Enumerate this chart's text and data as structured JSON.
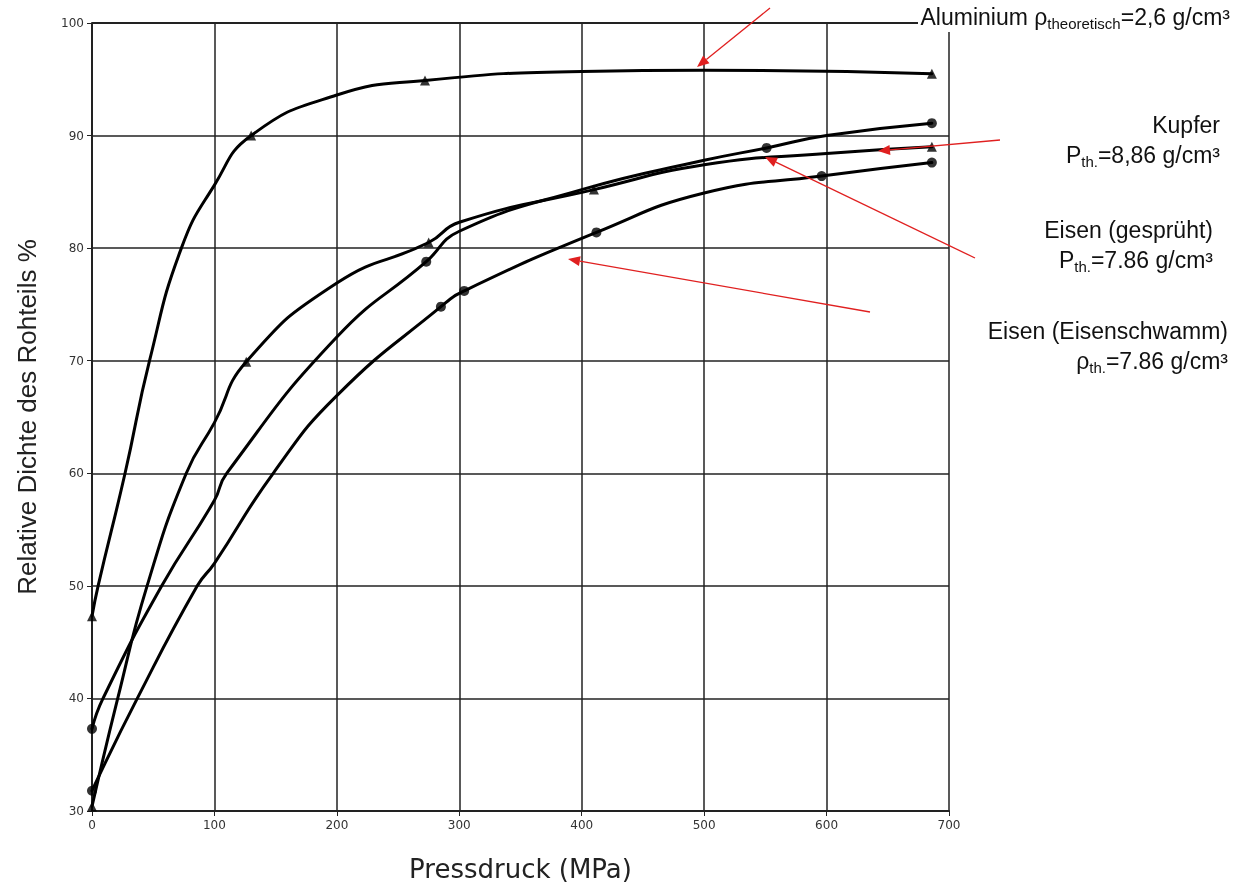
{
  "chart_data": {
    "type": "line",
    "xlabel": "Pressdruck (MPa)",
    "ylabel": "Relative Dichte des Rohteils %",
    "xlim": [
      0,
      700
    ],
    "xticks": [
      0,
      100,
      200,
      300,
      400,
      500,
      600,
      700
    ],
    "ylim": [
      30,
      100
    ],
    "yticks": [
      30,
      40,
      50,
      60,
      70,
      80,
      90,
      100
    ],
    "grid": true,
    "series": [
      {
        "marker": "none",
        "color": "#000000",
        "x": [
          0,
          5,
          27,
          47,
          73,
          100,
          130,
          200,
          272,
          400,
          500,
          686
        ],
        "values": [
          47.3,
          50,
          60,
          70,
          80,
          85.6,
          90,
          93.6,
          94.9,
          95.7,
          95.8,
          95.5
        ]
      },
      {
        "type": "scatter",
        "marker": "triangle",
        "color": "#000000",
        "x": [
          0,
          130,
          272,
          686
        ],
        "values": [
          47.3,
          90,
          94.9,
          95.5
        ]
      },
      {
        "marker": "none",
        "color": "#000000",
        "x": [
          0,
          21,
          45,
          77,
          100,
          126,
          200,
          275,
          300,
          410,
          500,
          600,
          686
        ],
        "values": [
          30.4,
          40,
          50,
          60,
          64.5,
          69.9,
          76.9,
          80.5,
          82.3,
          85.2,
          87.4,
          88.4,
          89.0
        ]
      },
      {
        "type": "scatter",
        "marker": "triangle",
        "color": "#000000",
        "x": [
          0,
          126,
          275,
          410,
          686
        ],
        "values": [
          30.4,
          69.9,
          80.5,
          85.2,
          89.0
        ]
      },
      {
        "marker": "none",
        "color": "#000000",
        "x": [
          0,
          9,
          57,
          100,
          110,
          200,
          273,
          300,
          400,
          500,
          551,
          600,
          686
        ],
        "values": [
          37.3,
          40,
          50,
          57.6,
          60,
          72.1,
          78.8,
          81.5,
          85.2,
          87.8,
          88.9,
          90.0,
          91.1
        ]
      },
      {
        "type": "scatter",
        "marker": "circle",
        "color": "#000000",
        "x": [
          0,
          273,
          551,
          686
        ],
        "values": [
          37.3,
          78.8,
          88.9,
          91.1
        ]
      },
      {
        "marker": "none",
        "color": "#000000",
        "x": [
          0,
          37,
          86,
          100,
          148,
          200,
          285,
          304,
          412,
          500,
          596,
          686
        ],
        "values": [
          31.8,
          40,
          50,
          52,
          60,
          66.9,
          74.8,
          76.2,
          81.4,
          84.9,
          86.4,
          87.6
        ]
      },
      {
        "type": "scatter",
        "marker": "circle",
        "color": "#000000",
        "x": [
          0,
          285,
          304,
          412,
          596,
          686
        ],
        "values": [
          31.8,
          74.8,
          76.2,
          81.4,
          86.4,
          87.6
        ]
      }
    ],
    "annotations": [
      "Aluminium ρ$_{theoretisch}$=2,6 g/cm³",
      "Kupfer\nP$_{th.}$=8,86 g/cm³",
      "Eisen (gesprüht)\nP$_{th.}$=7.86 g/cm³",
      "Eisen (Eisenschwamm)\nρ$_{th.}$=7.86 g/cm³"
    ]
  }
}
